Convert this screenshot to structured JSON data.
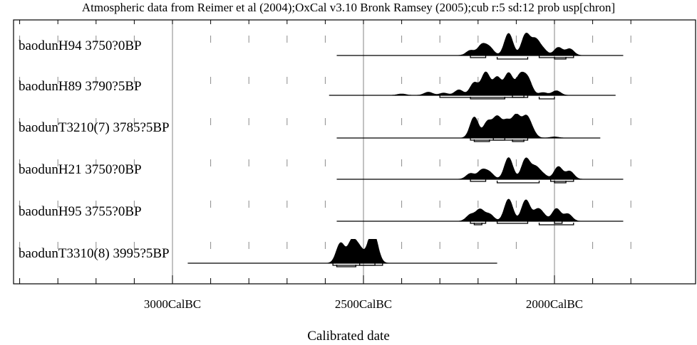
{
  "chart_data": {
    "type": "area",
    "title": "Atmospheric data from Reimer et al (2004);OxCal v3.10 Bronk Ramsey (2005);cub r:5 sd:12 prob usp[chron]",
    "xlabel": "Calibrated date",
    "ylabel": "",
    "x_unit": "CalBC",
    "x_reversed": true,
    "xlim": [
      3400,
      1750
    ],
    "major_ticks": [
      3000,
      2500,
      2000
    ],
    "tick_labels": [
      "3000CalBC",
      "2500CalBC",
      "2000CalBC"
    ],
    "minor_tick_step": 100,
    "grid": "vertical lines at major ticks",
    "legend": "none",
    "series": [
      {
        "name": "baodunH94 3750?0BP",
        "line_range": [
          2570,
          1820
        ],
        "peaks": [
          [
            2220,
            0.22
          ],
          [
            2190,
            0.45
          ],
          [
            2170,
            0.33
          ],
          [
            2120,
            0.97
          ],
          [
            2075,
            0.93
          ],
          [
            2050,
            0.66
          ],
          [
            2030,
            0.25
          ],
          [
            1990,
            0.35
          ],
          [
            1960,
            0.29
          ]
        ],
        "sigma_bars": [
          [
            2220,
            2180
          ],
          [
            2150,
            2070
          ],
          [
            2040,
            1950
          ],
          [
            2000,
            1970
          ]
        ]
      },
      {
        "name": "baodunH89 3790?5BP",
        "line_range": [
          2590,
          1840
        ],
        "peaks": [
          [
            2400,
            0.06
          ],
          [
            2330,
            0.14
          ],
          [
            2290,
            0.1
          ],
          [
            2250,
            0.24
          ],
          [
            2210,
            0.55
          ],
          [
            2180,
            1.0
          ],
          [
            2150,
            0.78
          ],
          [
            2120,
            0.96
          ],
          [
            2090,
            0.82
          ],
          [
            2070,
            0.7
          ],
          [
            2030,
            0.12
          ],
          [
            1995,
            0.2
          ]
        ],
        "sigma_bars": [
          [
            2300,
            2070
          ],
          [
            2220,
            2130
          ],
          [
            2110,
            2080
          ],
          [
            2040,
            2000
          ]
        ]
      },
      {
        "name": "baodunT3210(7) 3785?5BP",
        "line_range": [
          2570,
          1880
        ],
        "peaks": [
          [
            2210,
            0.92
          ],
          [
            2175,
            0.7
          ],
          [
            2150,
            0.88
          ],
          [
            2125,
            0.7
          ],
          [
            2100,
            0.95
          ],
          [
            2075,
            0.82
          ],
          [
            2060,
            0.3
          ],
          [
            2000,
            0.05
          ]
        ],
        "sigma_bars": [
          [
            2220,
            2070
          ],
          [
            2210,
            2170
          ],
          [
            2160,
            2130
          ],
          [
            2110,
            2080
          ]
        ]
      },
      {
        "name": "baodunH21 3750?0BP",
        "line_range": [
          2570,
          1820
        ],
        "peaks": [
          [
            2220,
            0.25
          ],
          [
            2190,
            0.38
          ],
          [
            2170,
            0.28
          ],
          [
            2120,
            0.95
          ],
          [
            2075,
            0.9
          ],
          [
            2050,
            0.5
          ],
          [
            2030,
            0.2
          ],
          [
            1990,
            0.55
          ],
          [
            1960,
            0.35
          ]
        ],
        "sigma_bars": [
          [
            2220,
            2180
          ],
          [
            2150,
            2040
          ],
          [
            2010,
            1950
          ],
          [
            2000,
            1970
          ]
        ]
      },
      {
        "name": "baodunH95 3755?0BP",
        "line_range": [
          2570,
          1820
        ],
        "peaks": [
          [
            2220,
            0.28
          ],
          [
            2195,
            0.5
          ],
          [
            2170,
            0.3
          ],
          [
            2120,
            0.97
          ],
          [
            2075,
            0.93
          ],
          [
            2045,
            0.45
          ],
          [
            2030,
            0.22
          ],
          [
            1995,
            0.55
          ],
          [
            1965,
            0.32
          ]
        ],
        "sigma_bars": [
          [
            2220,
            2180
          ],
          [
            2210,
            2190
          ],
          [
            2150,
            2070
          ],
          [
            2040,
            1950
          ],
          [
            2000,
            1980
          ]
        ]
      },
      {
        "name": "baodunT3310(8) 3995?5BP",
        "line_range": [
          2960,
          2150
        ],
        "peaks": [
          [
            2560,
            0.88
          ],
          [
            2530,
            0.95
          ],
          [
            2510,
            0.6
          ],
          [
            2480,
            0.92
          ],
          [
            2470,
            0.7
          ]
        ],
        "sigma_bars": [
          [
            2580,
            2450
          ],
          [
            2570,
            2520
          ],
          [
            2510,
            2470
          ]
        ]
      }
    ]
  }
}
